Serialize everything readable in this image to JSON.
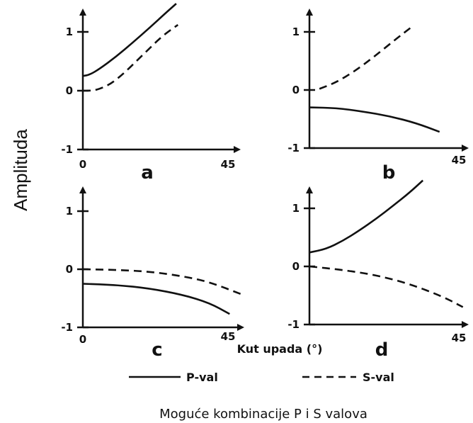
{
  "figure": {
    "ylabel": "Amplituda",
    "xlabel": "Kut upada (°)",
    "caption": "Moguće kombinacije P i S valova",
    "legend": [
      {
        "label": "P-val",
        "style": "solid"
      },
      {
        "label": "S-val",
        "style": "dashed"
      }
    ]
  },
  "chart_data": [
    {
      "type": "line",
      "panel": "a",
      "xlim": [
        0,
        45
      ],
      "ylim": [
        -1,
        1.5
      ],
      "xticks": [
        "0",
        "45"
      ],
      "yticks": [
        "1",
        "0",
        "-1"
      ],
      "series": [
        {
          "name": "P-val",
          "style": "solid",
          "x": [
            0,
            2,
            5,
            10,
            15,
            20,
            25,
            28
          ],
          "y": [
            0.25,
            0.27,
            0.37,
            0.58,
            0.82,
            1.07,
            1.33,
            1.48
          ]
        },
        {
          "name": "S-val",
          "style": "dashed",
          "x": [
            0,
            2,
            4,
            8,
            12,
            16,
            20,
            24,
            28.5
          ],
          "y": [
            0.0,
            0.0,
            0.01,
            0.1,
            0.28,
            0.5,
            0.72,
            0.94,
            1.12
          ]
        }
      ]
    },
    {
      "type": "line",
      "panel": "b",
      "xlim": [
        0,
        45
      ],
      "ylim": [
        -1,
        1.5
      ],
      "xticks": [
        "45"
      ],
      "yticks": [
        "1",
        "0",
        "-1"
      ],
      "series": [
        {
          "name": "P-val",
          "style": "solid",
          "x": [
            0,
            8,
            16,
            24,
            32,
            39
          ],
          "y": [
            -0.3,
            -0.31,
            -0.37,
            -0.45,
            -0.57,
            -0.72
          ]
        },
        {
          "name": "S-val",
          "style": "dashed",
          "x": [
            3,
            8,
            14,
            20,
            26,
            31
          ],
          "y": [
            0.02,
            0.13,
            0.34,
            0.6,
            0.88,
            1.1
          ]
        }
      ]
    },
    {
      "type": "line",
      "panel": "c",
      "xlim": [
        0,
        45
      ],
      "ylim": [
        -1,
        1.5
      ],
      "xticks": [
        "0",
        "45"
      ],
      "yticks": [
        "1",
        "0",
        "-1"
      ],
      "series": [
        {
          "name": "P-val",
          "style": "solid",
          "x": [
            0,
            10,
            20,
            30,
            38,
            44
          ],
          "y": [
            -0.25,
            -0.27,
            -0.33,
            -0.44,
            -0.58,
            -0.77
          ]
        },
        {
          "name": "S-val",
          "style": "dashed",
          "x": [
            0,
            10,
            20,
            30,
            38,
            47.5
          ],
          "y": [
            0.0,
            -0.01,
            -0.04,
            -0.12,
            -0.22,
            -0.43
          ]
        }
      ]
    },
    {
      "type": "line",
      "panel": "d",
      "xlim": [
        0,
        45
      ],
      "ylim": [
        -1,
        1.5
      ],
      "xticks": [
        "45"
      ],
      "yticks": [
        "1",
        "0",
        "-1"
      ],
      "series": [
        {
          "name": "P-val",
          "style": "solid",
          "x": [
            0,
            5,
            10,
            15,
            20,
            25,
            30,
            34
          ],
          "y": [
            0.24,
            0.3,
            0.44,
            0.62,
            0.82,
            1.04,
            1.27,
            1.48
          ]
        },
        {
          "name": "S-val",
          "style": "dashed",
          "x": [
            0,
            10,
            20,
            30,
            40,
            46
          ],
          "y": [
            0.0,
            -0.06,
            -0.15,
            -0.3,
            -0.52,
            -0.7
          ]
        }
      ]
    }
  ]
}
